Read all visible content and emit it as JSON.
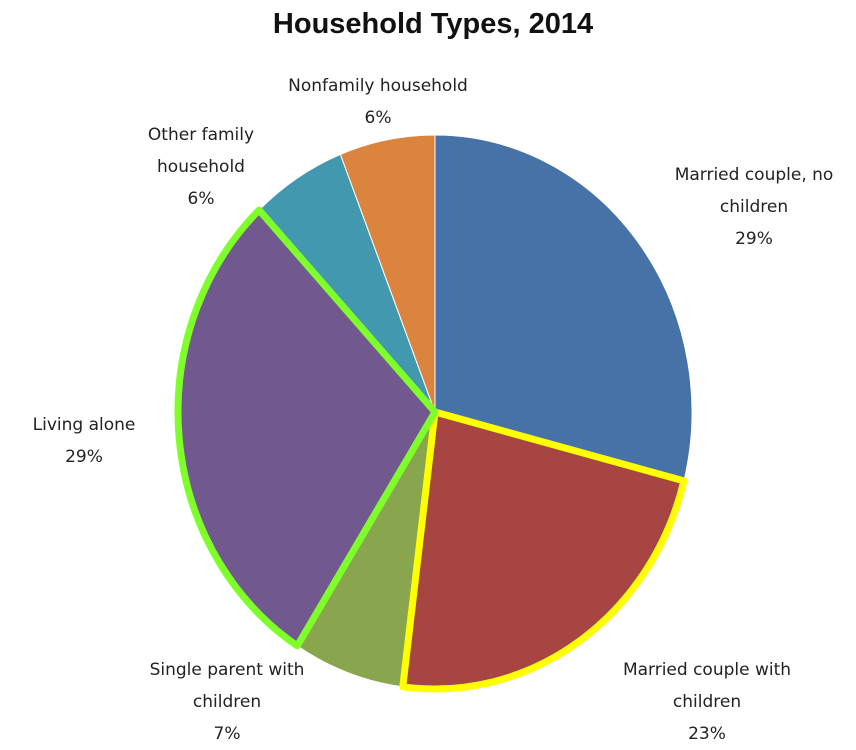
{
  "chart_data": {
    "type": "pie",
    "title": "Household Types, 2014",
    "categories": [
      "Married couple, no children",
      "Married couple with children",
      "Single parent with children",
      "Living alone",
      "Other family household",
      "Nonfamily household"
    ],
    "values": [
      29,
      23,
      7,
      29,
      6,
      6
    ],
    "value_labels": [
      "29%",
      "23%",
      "7%",
      "29%",
      "6%",
      "6%"
    ],
    "colors": [
      "#4672a7",
      "#a64542",
      "#89a54e",
      "#71588f",
      "#4198af",
      "#db843d"
    ],
    "outline_colors": [
      null,
      "#ffff00",
      null,
      "#7fff2a",
      null,
      null
    ],
    "start_angle": 0,
    "direction": "clockwise"
  }
}
